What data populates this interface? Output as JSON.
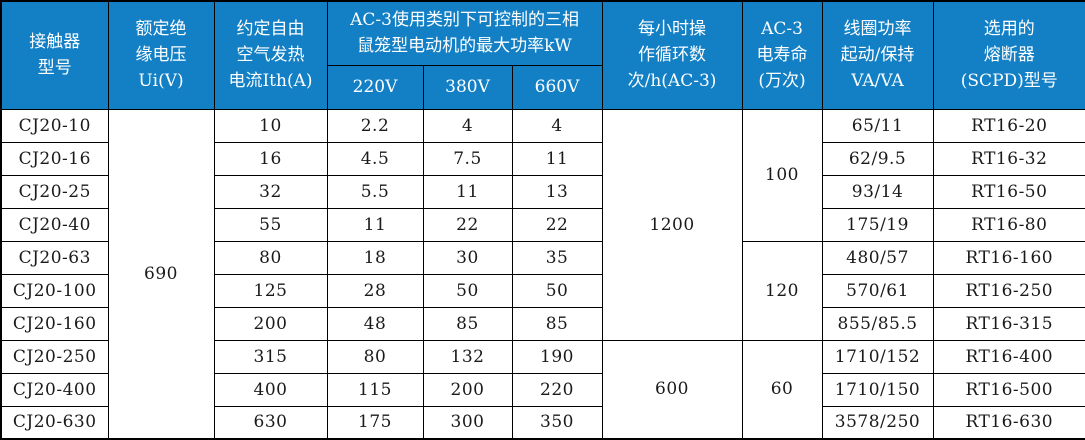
{
  "colors": {
    "header_bg": "#1380c6",
    "header_text": "#ffffff",
    "border": "#000000",
    "cell_text": "#1a1a1a"
  },
  "table": {
    "header": {
      "model": "接触器\n型号",
      "ui": "额定绝\n缘电压\nUi(V)",
      "ith": "约定自由\n空气发热\n电流Ith(A)",
      "kw_group": "AC-3使用类别下可控制的三相\n鼠笼型电动机的最大功率kW",
      "kw220": "220V",
      "kw380": "380V",
      "kw660": "660V",
      "cycles": "每小时操\n作循环数\n次/h(AC-3)",
      "life": "AC-3\n电寿命\n(万次)",
      "coil": "线圈功率\n起动/保持\nVA/VA",
      "fuse": "选用的\n熔断器\n(SCPD)型号"
    },
    "rows": [
      {
        "model": "CJ20-10",
        "ith": "10",
        "kw220": "2.2",
        "kw380": "4",
        "kw660": "4",
        "coil": "65/11",
        "fuse": "RT16-20"
      },
      {
        "model": "CJ20-16",
        "ith": "16",
        "kw220": "4.5",
        "kw380": "7.5",
        "kw660": "11",
        "coil": "62/9.5",
        "fuse": "RT16-32"
      },
      {
        "model": "CJ20-25",
        "ith": "32",
        "kw220": "5.5",
        "kw380": "11",
        "kw660": "13",
        "coil": "93/14",
        "fuse": "RT16-50"
      },
      {
        "model": "CJ20-40",
        "ith": "55",
        "kw220": "11",
        "kw380": "22",
        "kw660": "22",
        "coil": "175/19",
        "fuse": "RT16-80"
      },
      {
        "model": "CJ20-63",
        "ith": "80",
        "kw220": "18",
        "kw380": "30",
        "kw660": "35",
        "coil": "480/57",
        "fuse": "RT16-160"
      },
      {
        "model": "CJ20-100",
        "ith": "125",
        "kw220": "28",
        "kw380": "50",
        "kw660": "50",
        "coil": "570/61",
        "fuse": "RT16-250"
      },
      {
        "model": "CJ20-160",
        "ith": "200",
        "kw220": "48",
        "kw380": "85",
        "kw660": "85",
        "coil": "855/85.5",
        "fuse": "RT16-315"
      },
      {
        "model": "CJ20-250",
        "ith": "315",
        "kw220": "80",
        "kw380": "132",
        "kw660": "190",
        "coil": "1710/152",
        "fuse": "RT16-400"
      },
      {
        "model": "CJ20-400",
        "ith": "400",
        "kw220": "115",
        "kw380": "200",
        "kw660": "220",
        "coil": "1710/150",
        "fuse": "RT16-500"
      },
      {
        "model": "CJ20-630",
        "ith": "630",
        "kw220": "175",
        "kw380": "300",
        "kw660": "350",
        "coil": "3578/250",
        "fuse": "RT16-630"
      }
    ],
    "merged": {
      "ui": {
        "value": "690",
        "start": 0,
        "span": 10
      },
      "cycles": [
        {
          "value": "1200",
          "start": 0,
          "span": 7
        },
        {
          "value": "600",
          "start": 7,
          "span": 3
        }
      ],
      "life": [
        {
          "value": "100",
          "start": 0,
          "span": 4
        },
        {
          "value": "120",
          "start": 4,
          "span": 3
        },
        {
          "value": "60",
          "start": 7,
          "span": 3
        }
      ]
    }
  }
}
